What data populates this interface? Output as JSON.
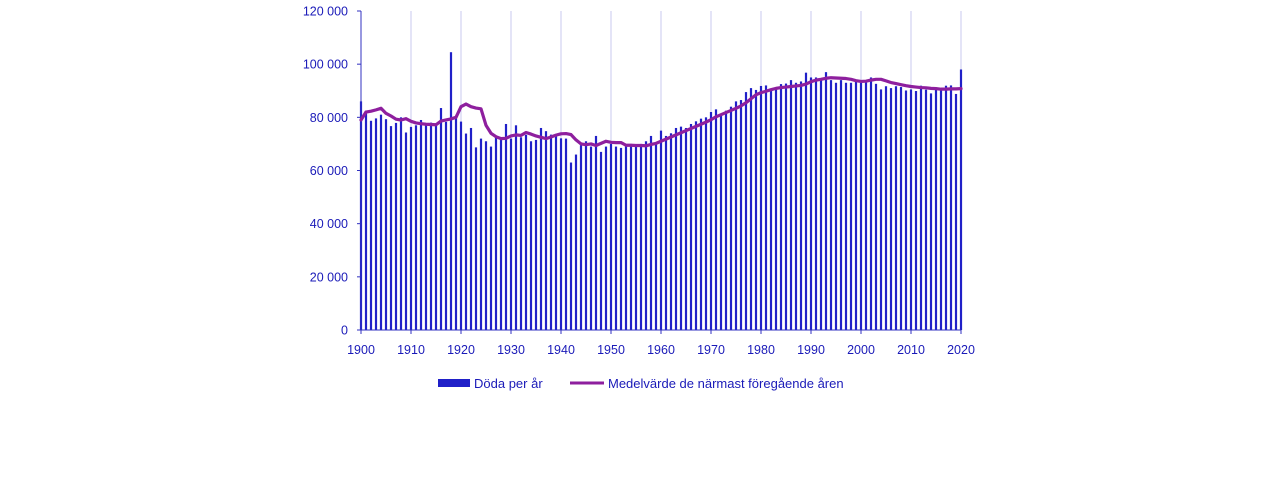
{
  "colors": {
    "bars": "#2020c8",
    "line": "#8e1f9e",
    "grid": "#c9c9ef",
    "axis": "#3030c0",
    "text": "#1a1ab8"
  },
  "chart_data": {
    "type": "bar",
    "title": "",
    "xlabel": "",
    "ylabel": "",
    "xlim": [
      1900,
      2020
    ],
    "ylim": [
      0,
      120000
    ],
    "y_ticks": [
      0,
      20000,
      40000,
      60000,
      80000,
      100000,
      120000
    ],
    "y_tick_labels": [
      "0",
      "20 000",
      "40 000",
      "60 000",
      "80 000",
      "100 000",
      "120 000"
    ],
    "x_ticks": [
      1900,
      1910,
      1920,
      1930,
      1940,
      1950,
      1960,
      1970,
      1980,
      1990,
      2000,
      2010,
      2020
    ],
    "x_tick_labels": [
      "1900",
      "1910",
      "1920",
      "1930",
      "1940",
      "1950",
      "1960",
      "1970",
      "1980",
      "1990",
      "2000",
      "2010",
      "2020"
    ],
    "grid": "vertical",
    "legend_position": "bottom",
    "years": [
      1900,
      1901,
      1902,
      1903,
      1904,
      1905,
      1906,
      1907,
      1908,
      1909,
      1910,
      1911,
      1912,
      1913,
      1914,
      1915,
      1916,
      1917,
      1918,
      1919,
      1920,
      1921,
      1922,
      1923,
      1924,
      1925,
      1926,
      1927,
      1928,
      1929,
      1930,
      1931,
      1932,
      1933,
      1934,
      1935,
      1936,
      1937,
      1938,
      1939,
      1940,
      1941,
      1942,
      1943,
      1944,
      1945,
      1946,
      1947,
      1948,
      1949,
      1950,
      1951,
      1952,
      1953,
      1954,
      1955,
      1956,
      1957,
      1958,
      1959,
      1960,
      1961,
      1962,
      1963,
      1964,
      1965,
      1966,
      1967,
      1968,
      1969,
      1970,
      1971,
      1972,
      1973,
      1974,
      1975,
      1976,
      1977,
      1978,
      1979,
      1980,
      1981,
      1982,
      1983,
      1984,
      1985,
      1986,
      1987,
      1988,
      1989,
      1990,
      1991,
      1992,
      1993,
      1994,
      1995,
      1996,
      1997,
      1998,
      1999,
      2000,
      2001,
      2002,
      2003,
      2004,
      2005,
      2006,
      2007,
      2008,
      2009,
      2010,
      2011,
      2012,
      2013,
      2014,
      2015,
      2016,
      2017,
      2018,
      2019,
      2020
    ],
    "series": [
      {
        "name": "Döda per år",
        "kind": "bar",
        "values": [
          86000,
          82500,
          78700,
          79600,
          81000,
          79300,
          76700,
          77900,
          80000,
          74300,
          76400,
          77000,
          79000,
          77000,
          78000,
          77300,
          83500,
          78300,
          104500,
          80300,
          78400,
          73900,
          76000,
          68700,
          72000,
          71000,
          69000,
          72600,
          72100,
          77500,
          72000,
          77000,
          72500,
          73400,
          71000,
          71500,
          76000,
          74800,
          73500,
          73000,
          72100,
          72000,
          63000,
          66000,
          69500,
          71000,
          69000,
          73000,
          67000,
          69000,
          70000,
          69000,
          68500,
          69300,
          70000,
          69000,
          70000,
          71000,
          73000,
          70000,
          75000,
          73000,
          74000,
          76000,
          76500,
          76000,
          77500,
          78500,
          79500,
          80000,
          82000,
          83000,
          81000,
          82500,
          84000,
          86000,
          86500,
          89500,
          91000,
          90300,
          91800,
          92000,
          90500,
          90800,
          92500,
          92700,
          94000,
          93000,
          93500,
          96800,
          95000,
          95000,
          94500,
          97000,
          94000,
          93000,
          94000,
          93000,
          93000,
          94000,
          93000,
          93500,
          95000,
          92600,
          90500,
          91700,
          91000,
          91700,
          91400,
          90100,
          90500,
          89900,
          91900,
          90400,
          89000,
          90900,
          90900,
          91900,
          92000,
          88800,
          98000
        ]
      },
      {
        "name": "Medelvärde de närmast föregående åren",
        "kind": "line",
        "values": [
          79000,
          82000,
          82300,
          82800,
          83400,
          81500,
          80500,
          79300,
          79000,
          79500,
          78500,
          77900,
          77600,
          77400,
          77300,
          77200,
          78600,
          79000,
          79400,
          80000,
          84000,
          85000,
          84000,
          83500,
          83200,
          77000,
          74000,
          72700,
          72000,
          72100,
          73000,
          73400,
          73200,
          74300,
          73700,
          73000,
          72500,
          72000,
          72600,
          73300,
          73800,
          73900,
          73500,
          71500,
          70000,
          69700,
          70000,
          69400,
          70200,
          71000,
          70600,
          70500,
          70500,
          69500,
          69500,
          69400,
          69400,
          69300,
          69800,
          70200,
          71000,
          71800,
          72600,
          73400,
          74200,
          75000,
          75800,
          76600,
          77400,
          78200,
          79100,
          80200,
          81000,
          81800,
          82600,
          83400,
          84300,
          85500,
          87000,
          88500,
          89300,
          89800,
          90400,
          90900,
          91200,
          91400,
          91600,
          91800,
          92000,
          92500,
          93400,
          94000,
          94300,
          94700,
          94900,
          94800,
          94700,
          94600,
          94300,
          93800,
          93500,
          93600,
          94000,
          94300,
          94300,
          93700,
          93100,
          92700,
          92300,
          91900,
          91600,
          91400,
          91200,
          91100,
          90900,
          90800,
          90600,
          90600,
          90700,
          90700,
          90800
        ]
      }
    ]
  }
}
